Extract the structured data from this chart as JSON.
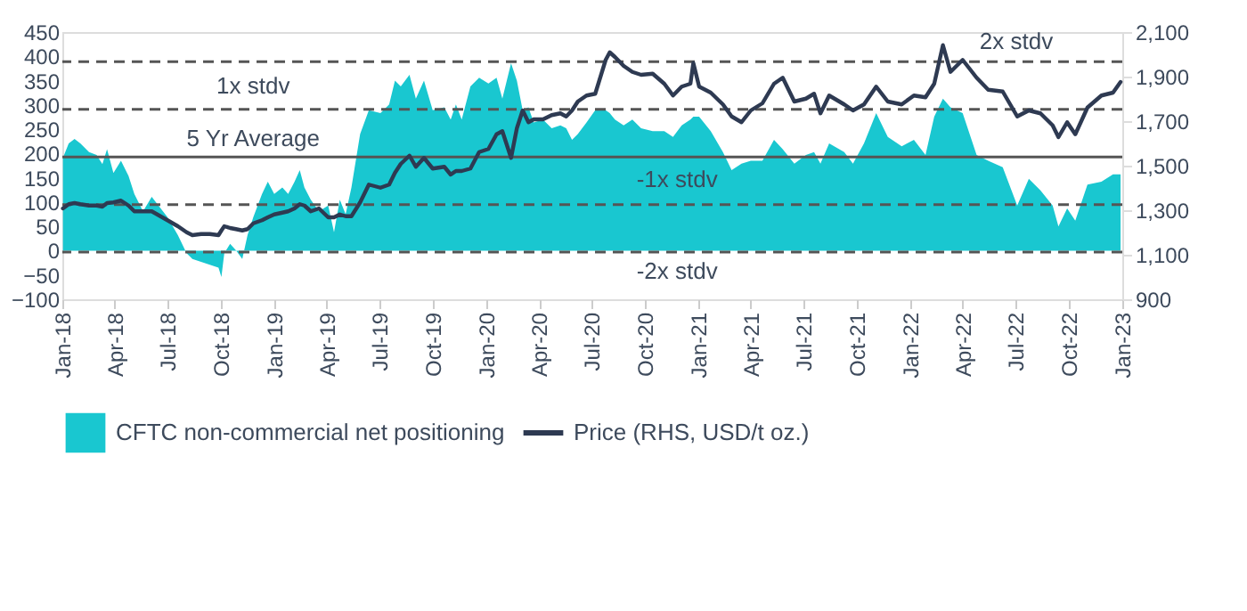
{
  "chart_data": {
    "type": "area",
    "x": [
      "2018-01-02",
      "2018-01-12",
      "2018-01-22",
      "2018-02-01",
      "2018-02-16",
      "2018-03-01",
      "2018-03-11",
      "2018-03-19",
      "2018-03-30",
      "2018-04-12",
      "2018-04-25",
      "2018-05-05",
      "2018-05-20",
      "2018-06-04",
      "2018-07-01",
      "2018-07-19",
      "2018-08-03",
      "2018-08-13",
      "2018-08-28",
      "2018-09-12",
      "2018-09-27",
      "2018-10-02",
      "2018-10-07",
      "2018-10-17",
      "2018-10-27",
      "2018-11-07",
      "2018-11-16",
      "2018-11-26",
      "2018-12-11",
      "2018-12-21",
      "2019-01-01",
      "2019-01-15",
      "2019-01-25",
      "2019-02-05",
      "2019-02-14",
      "2019-02-22",
      "2019-03-05",
      "2019-03-19",
      "2019-04-04",
      "2019-04-14",
      "2019-04-24",
      "2019-05-04",
      "2019-05-14",
      "2019-05-29",
      "2019-06-13",
      "2019-07-03",
      "2019-07-18",
      "2019-07-28",
      "2019-08-07",
      "2019-08-22",
      "2019-09-02",
      "2019-09-16",
      "2019-10-01",
      "2019-10-21",
      "2019-11-01",
      "2019-11-10",
      "2019-11-20",
      "2019-12-05",
      "2019-12-20",
      "2020-01-05",
      "2020-01-19",
      "2020-01-29",
      "2020-02-13",
      "2020-02-23",
      "2020-03-04",
      "2020-03-14",
      "2020-03-23",
      "2020-04-08",
      "2020-04-23",
      "2020-05-08",
      "2020-05-18",
      "2020-05-28",
      "2020-06-07",
      "2020-06-22",
      "2020-07-07",
      "2020-07-25",
      "2020-08-01",
      "2020-08-10",
      "2020-08-25",
      "2020-09-09",
      "2020-09-24",
      "2020-10-14",
      "2020-11-03",
      "2020-11-18",
      "2020-12-03",
      "2020-12-18",
      "2020-12-23",
      "2021-01-02",
      "2021-01-22",
      "2021-02-12",
      "2021-02-27",
      "2021-03-16",
      "2021-04-01",
      "2021-04-21",
      "2021-05-11",
      "2021-05-26",
      "2021-06-15",
      "2021-07-05",
      "2021-07-19",
      "2021-07-30",
      "2021-08-14",
      "2021-09-09",
      "2021-09-24",
      "2021-10-13",
      "2021-11-03",
      "2021-11-23",
      "2021-12-17",
      "2022-01-07",
      "2022-01-27",
      "2022-02-11",
      "2022-02-26",
      "2022-03-11",
      "2022-04-01",
      "2022-04-25",
      "2022-05-15",
      "2022-06-09",
      "2022-07-04",
      "2022-07-24",
      "2022-08-13",
      "2022-09-03",
      "2022-09-13",
      "2022-09-28",
      "2022-10-12",
      "2022-11-02",
      "2022-11-26",
      "2022-12-16",
      "2022-12-29"
    ],
    "series": [
      {
        "name": "CFTC non-commercial net positioning",
        "color": "#19c7d0",
        "values": [
          191,
          221,
          230,
          221,
          203,
          197,
          178,
          209,
          160,
          185,
          154,
          117,
          81,
          111,
          69,
          32,
          -5,
          -17,
          -23,
          -29,
          -35,
          -54,
          -5,
          14,
          1,
          -17,
          32,
          69,
          117,
          142,
          117,
          130,
          117,
          142,
          166,
          130,
          105,
          81,
          93,
          38,
          105,
          75,
          130,
          240,
          289,
          283,
          301,
          350,
          338,
          362,
          313,
          350,
          289,
          295,
          270,
          301,
          270,
          338,
          356,
          344,
          356,
          313,
          386,
          350,
          289,
          295,
          264,
          270,
          252,
          258,
          252,
          228,
          240,
          264,
          289,
          289,
          283,
          270,
          258,
          270,
          252,
          246,
          246,
          234,
          258,
          270,
          276,
          276,
          246,
          203,
          166,
          179,
          185,
          185,
          228,
          209,
          179,
          197,
          203,
          179,
          221,
          203,
          179,
          221,
          283,
          234,
          215,
          228,
          197,
          276,
          313,
          295,
          283,
          197,
          185,
          172,
          93,
          148,
          124,
          93,
          50,
          87,
          62,
          136,
          142,
          157,
          157
        ]
      },
      {
        "name": "Price (RHS, USD/t oz.)",
        "type": "line",
        "axis": "y2",
        "color": "#2e3a52",
        "values": [
          1308,
          1327,
          1332,
          1327,
          1321,
          1321,
          1316,
          1332,
          1335,
          1343,
          1321,
          1295,
          1295,
          1295,
          1255,
          1228,
          1201,
          1188,
          1193,
          1193,
          1188,
          1209,
          1228,
          1220,
          1215,
          1209,
          1215,
          1241,
          1255,
          1268,
          1281,
          1289,
          1295,
          1308,
          1327,
          1321,
          1295,
          1308,
          1268,
          1268,
          1281,
          1273,
          1273,
          1335,
          1415,
          1401,
          1415,
          1468,
          1508,
          1545,
          1495,
          1535,
          1487,
          1495,
          1460,
          1476,
          1476,
          1487,
          1561,
          1575,
          1641,
          1655,
          1535,
          1668,
          1748,
          1695,
          1708,
          1708,
          1727,
          1735,
          1721,
          1748,
          1788,
          1815,
          1823,
          1975,
          2009,
          1988,
          1948,
          1921,
          1908,
          1913,
          1868,
          1815,
          1855,
          1868,
          1961,
          1855,
          1828,
          1775,
          1721,
          1695,
          1748,
          1780,
          1868,
          1895,
          1788,
          1801,
          1823,
          1735,
          1815,
          1775,
          1748,
          1775,
          1855,
          1788,
          1775,
          1815,
          1807,
          1868,
          2041,
          1921,
          1975,
          1895,
          1841,
          1833,
          1721,
          1748,
          1735,
          1681,
          1628,
          1695,
          1641,
          1761,
          1815,
          1828,
          1876
        ]
      }
    ],
    "xlim": [
      "2018-01-01",
      "2023-01-01"
    ],
    "xticks": [
      {
        "value": "2018-01",
        "label": "Jan-18"
      },
      {
        "value": "2018-04",
        "label": "Apr-18"
      },
      {
        "value": "2018-07",
        "label": "Jul-18"
      },
      {
        "value": "2018-10",
        "label": "Oct-18"
      },
      {
        "value": "2019-01",
        "label": "Jan-19"
      },
      {
        "value": "2019-04",
        "label": "Apr-19"
      },
      {
        "value": "2019-07",
        "label": "Jul-19"
      },
      {
        "value": "2019-10",
        "label": "Oct-19"
      },
      {
        "value": "2020-01",
        "label": "Jan-20"
      },
      {
        "value": "2020-04",
        "label": "Apr-20"
      },
      {
        "value": "2020-07",
        "label": "Jul-20"
      },
      {
        "value": "2020-10",
        "label": "Oct-20"
      },
      {
        "value": "2021-01",
        "label": "Jan-21"
      },
      {
        "value": "2021-04",
        "label": "Apr-21"
      },
      {
        "value": "2021-07",
        "label": "Jul-21"
      },
      {
        "value": "2021-10",
        "label": "Oct-21"
      },
      {
        "value": "2022-01",
        "label": "Jan-22"
      },
      {
        "value": "2022-04",
        "label": "Apr-22"
      },
      {
        "value": "2022-07",
        "label": "Jul-22"
      },
      {
        "value": "2022-10",
        "label": "Oct-22"
      },
      {
        "value": "2023-01",
        "label": "Jan-23"
      }
    ],
    "ylim": [
      -100,
      450
    ],
    "yticks": [
      -100,
      -50,
      0,
      50,
      100,
      150,
      200,
      250,
      300,
      350,
      400,
      450
    ],
    "y2lim": [
      900,
      2100
    ],
    "y2ticks": [
      900,
      {
        "value": 1100,
        "label": "1,100"
      },
      {
        "value": 1300,
        "label": "1,300"
      },
      {
        "value": 1500,
        "label": "1,500"
      },
      {
        "value": 1700,
        "label": "1,700"
      },
      {
        "value": 1900,
        "label": "1,900"
      },
      {
        "value": 2100,
        "label": "2,100"
      }
    ],
    "ref_lines": [
      {
        "axis": "y",
        "value": 389,
        "label": "2x stdv",
        "line_style": "dashed",
        "color": "#555555"
      },
      {
        "axis": "y",
        "value": 291,
        "label": "1x stdv",
        "line_style": "dashed",
        "color": "#555555"
      },
      {
        "axis": "y",
        "value": 193,
        "label": "5 Yr Average",
        "line_style": "solid",
        "color": "#555555"
      },
      {
        "axis": "y",
        "value": 95,
        "label": "-1x stdv",
        "line_style": "dashed",
        "color": "#555555"
      },
      {
        "axis": "y",
        "value": -3,
        "label": "-2x stdv",
        "line_style": "dashed",
        "color": "#555555"
      }
    ],
    "grid": false,
    "legend": "bottom"
  }
}
